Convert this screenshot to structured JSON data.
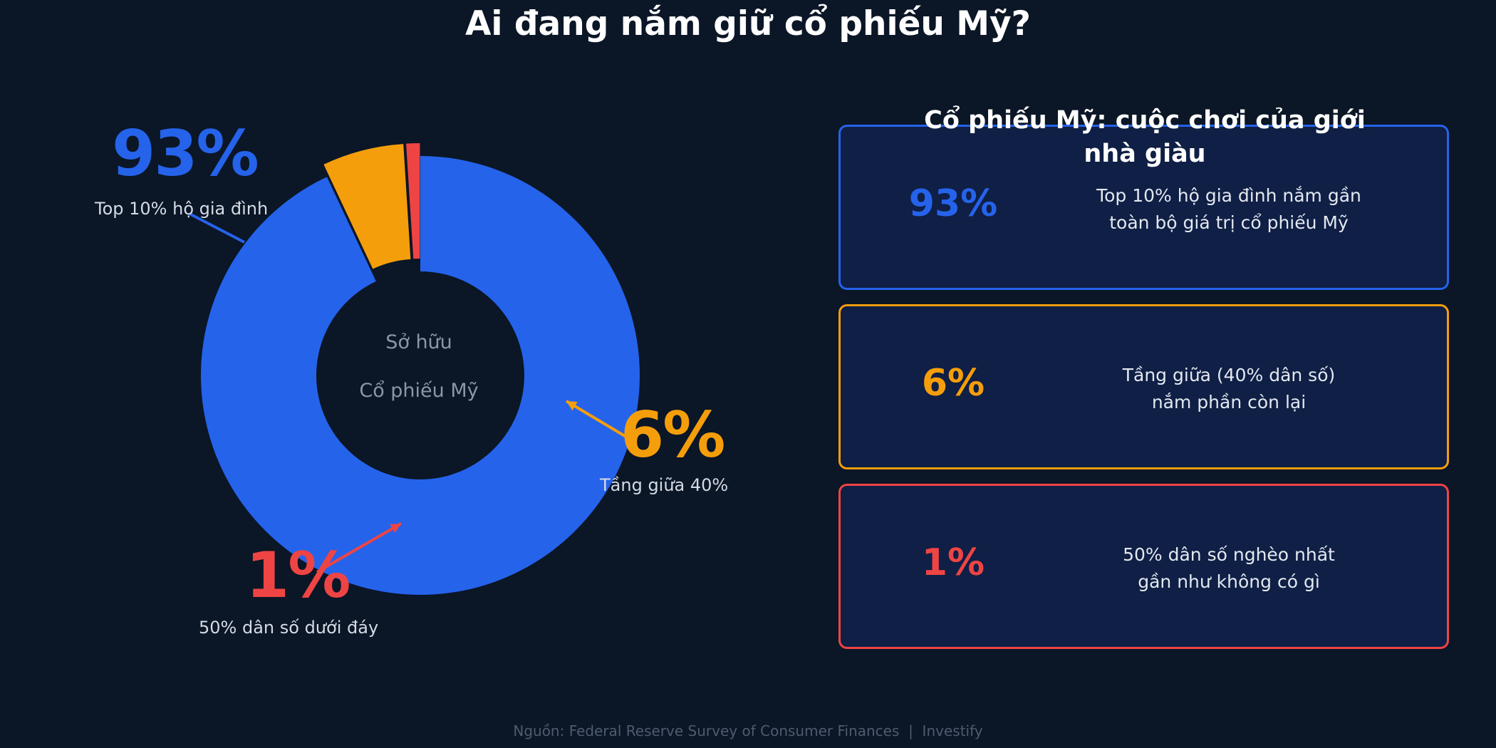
{
  "title": "Ai đang nắm giữ cổ phiếu Mỹ?",
  "chart_data": {
    "type": "pie",
    "title": "Ai đang nắm giữ cổ phiếu Mỹ?",
    "center_label": [
      "Sở hữu",
      "Cổ phiếu Mỹ"
    ],
    "slices": [
      {
        "label": "Top 10% hộ gia đình",
        "value": 93,
        "display": "93%",
        "color": "#2563eb",
        "exploded": false
      },
      {
        "label": "Tầng giữa 40%",
        "value": 6,
        "display": "6%",
        "color": "#f59e0b",
        "exploded": true
      },
      {
        "label": "50% dân số dưới đáy",
        "value": 1,
        "display": "1%",
        "color": "#ef4444",
        "exploded": true
      }
    ]
  },
  "cards_heading": "Cổ phiếu Mỹ: cuộc chơi của giới nhà giàu",
  "cards": [
    {
      "pct": "93%",
      "line1": "Top 10% hộ gia đình nắm gần",
      "line2": "toàn bộ giá trị cổ phiếu Mỹ",
      "color": "#2563eb"
    },
    {
      "pct": "6%",
      "line1": "Tầng giữa (40% dân số)",
      "line2": "nắm phần còn lại",
      "color": "#f59e0b"
    },
    {
      "pct": "1%",
      "line1": "50% dân số nghèo nhất",
      "line2": "gần như không có gì",
      "color": "#ef4444"
    }
  ],
  "source": "Nguồn: Federal Reserve Survey of Consumer Finances  |  Investify"
}
